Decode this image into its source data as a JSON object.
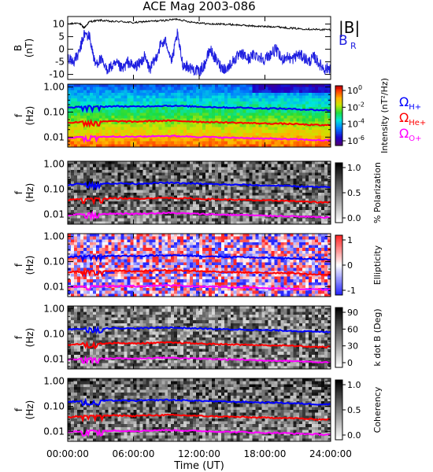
{
  "title": "ACE Mag 2003-086",
  "x_axis": {
    "label": "Time (UT)",
    "ticks": [
      "00:00:00",
      "06:00:00",
      "12:00:00",
      "18:00:00",
      "24:00:00"
    ],
    "range_hours": [
      0,
      24
    ]
  },
  "colors": {
    "b_total": "#000000",
    "b_radial": "#1f1fe0",
    "h_plus": "#0000ff",
    "he_plus": "#ff0000",
    "o_plus": "#ff00ff"
  },
  "chart_data": [
    {
      "type": "line",
      "panel": "magnetic-field",
      "ylabel": "B (nT)",
      "ylim": [
        -12,
        13
      ],
      "yticks": [
        "10",
        "5",
        "0",
        "-5",
        "-10"
      ],
      "legend": [
        "|B|",
        "B_R"
      ],
      "series": [
        {
          "name": "|B|",
          "x": [
            0,
            1,
            1.5,
            2,
            3,
            4,
            5,
            6,
            7,
            8,
            9,
            10,
            11,
            12,
            13,
            14,
            15,
            16,
            17,
            18,
            19,
            20,
            21,
            22,
            23,
            24
          ],
          "values": [
            10,
            10.5,
            8.5,
            11,
            11.5,
            11,
            11,
            10.5,
            11,
            11.2,
            11.5,
            12,
            11,
            10.5,
            10,
            10,
            9.8,
            9.5,
            9.2,
            9,
            9,
            8.5,
            8.2,
            8,
            7.8,
            7.8
          ]
        },
        {
          "name": "B_R",
          "x": [
            0,
            0.5,
            1,
            1.5,
            2,
            2.5,
            3,
            3.5,
            4,
            4.5,
            5,
            5.5,
            6,
            6.5,
            7,
            7.5,
            8,
            8.5,
            9,
            9.5,
            10,
            10.5,
            11,
            11.5,
            12,
            12.5,
            13,
            13.5,
            14,
            14.5,
            15,
            15.5,
            16,
            16.5,
            17,
            17.5,
            18,
            18.5,
            19,
            19.5,
            20,
            20.5,
            21,
            21.5,
            22,
            22.5,
            23,
            23.5,
            24
          ],
          "values": [
            -3,
            -5,
            -2,
            6,
            5,
            -6,
            -4,
            -8,
            -7,
            -6,
            -8,
            -5,
            -7,
            -6,
            -3,
            -8,
            -4,
            2,
            3,
            -5,
            6,
            -6,
            -7,
            -8,
            -9,
            -6,
            0,
            -4,
            -7,
            -8,
            -5,
            -3,
            -2,
            -4,
            -2,
            -3,
            -4,
            -2,
            0,
            -4,
            -3,
            -4,
            -2,
            -3,
            -5,
            -3,
            -6,
            -8,
            -7
          ]
        }
      ]
    },
    {
      "type": "heatmap",
      "panel": "intensity",
      "ylabel": "f (Hz)",
      "yscale": "log",
      "ylim": [
        0.004,
        1.3
      ],
      "yticks": [
        "1.00",
        "0.10",
        "0.01"
      ],
      "colorbar": {
        "label": "Intensity (nT²/Hz)",
        "scale": "log",
        "ticks": [
          "10^0",
          "10^-2",
          "10^-4",
          "10^-6"
        ]
      },
      "legend": [
        "ΩH+",
        "ΩHe+",
        "ΩO+"
      ]
    },
    {
      "type": "heatmap",
      "panel": "polarization",
      "ylabel": "f (Hz)",
      "yscale": "log",
      "yticks": [
        "1.00",
        "0.10",
        "0.01"
      ],
      "colorbar": {
        "label": "% Polarization",
        "ticks": [
          "1.0",
          "0.5",
          "0.0"
        ]
      }
    },
    {
      "type": "heatmap",
      "panel": "ellipticity",
      "ylabel": "f (Hz)",
      "yscale": "log",
      "yticks": [
        "1.00",
        "0.10",
        "0.01"
      ],
      "colorbar": {
        "label": "Ellipticity",
        "ticks": [
          "1",
          "0",
          "-1"
        ]
      }
    },
    {
      "type": "heatmap",
      "panel": "wave-normal-angle",
      "ylabel": "f (Hz)",
      "yscale": "log",
      "yticks": [
        "1.00",
        "0.10",
        "0.01"
      ],
      "colorbar": {
        "label": "k dot B (Deg)",
        "ticks": [
          "90",
          "60",
          "30",
          "0"
        ]
      }
    },
    {
      "type": "heatmap",
      "panel": "coherency",
      "ylabel": "f (Hz)",
      "yscale": "log",
      "yticks": [
        "1.00",
        "0.10",
        "0.01"
      ],
      "colorbar": {
        "label": "Coherency",
        "ticks": [
          "1.0",
          "0.5",
          "0.0"
        ]
      }
    },
    {
      "type": "line",
      "panel": "gyrofrequencies",
      "series": [
        {
          "name": "ΩH+",
          "x": [
            0,
            1,
            2,
            3,
            4,
            5,
            6,
            7,
            8,
            9,
            10,
            11,
            12,
            13,
            14,
            15,
            16,
            17,
            18,
            19,
            20,
            21,
            22,
            23,
            24
          ],
          "values": [
            0.15,
            0.16,
            0.17,
            0.165,
            0.17,
            0.17,
            0.165,
            0.17,
            0.175,
            0.18,
            0.175,
            0.17,
            0.165,
            0.16,
            0.155,
            0.15,
            0.15,
            0.145,
            0.14,
            0.14,
            0.135,
            0.13,
            0.125,
            0.12,
            0.12
          ]
        },
        {
          "name": "ΩHe+",
          "x": [
            0,
            1,
            2,
            3,
            4,
            5,
            6,
            7,
            8,
            9,
            10,
            11,
            12,
            13,
            14,
            15,
            16,
            17,
            18,
            19,
            20,
            21,
            22,
            23,
            24
          ],
          "values": [
            0.037,
            0.04,
            0.043,
            0.041,
            0.043,
            0.043,
            0.041,
            0.043,
            0.044,
            0.045,
            0.044,
            0.043,
            0.041,
            0.04,
            0.039,
            0.038,
            0.037,
            0.036,
            0.035,
            0.035,
            0.034,
            0.033,
            0.031,
            0.03,
            0.03
          ]
        },
        {
          "name": "ΩO+",
          "x": [
            0,
            1,
            2,
            3,
            4,
            5,
            6,
            7,
            8,
            9,
            10,
            11,
            12,
            13,
            14,
            15,
            16,
            17,
            18,
            19,
            20,
            21,
            22,
            23,
            24
          ],
          "values": [
            0.0094,
            0.01,
            0.0106,
            0.0103,
            0.0106,
            0.0106,
            0.0103,
            0.0106,
            0.011,
            0.0112,
            0.011,
            0.0106,
            0.0103,
            0.01,
            0.0097,
            0.0094,
            0.0094,
            0.009,
            0.0087,
            0.0087,
            0.0084,
            0.0081,
            0.0078,
            0.0075,
            0.0075
          ]
        }
      ]
    }
  ]
}
